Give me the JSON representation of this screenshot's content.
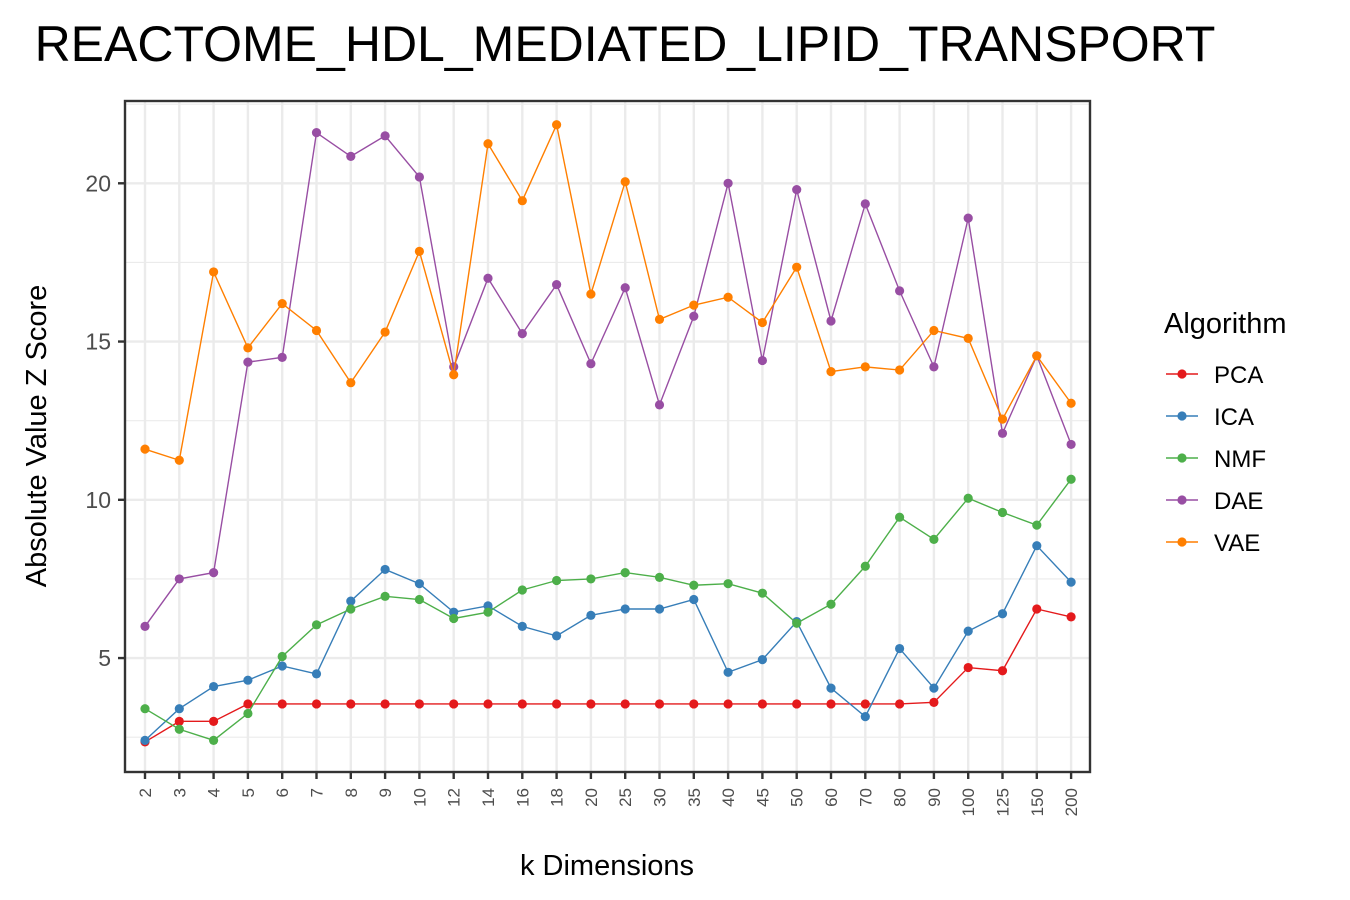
{
  "chart_data": {
    "type": "line",
    "title": "REACTOME_HDL_MEDIATED_LIPID_TRANSPORT",
    "xlabel": "k Dimensions",
    "ylabel": "Absolute Value Z Score",
    "categories": [
      "2",
      "3",
      "4",
      "5",
      "6",
      "7",
      "8",
      "9",
      "10",
      "12",
      "14",
      "16",
      "18",
      "20",
      "25",
      "30",
      "35",
      "40",
      "45",
      "50",
      "60",
      "70",
      "80",
      "90",
      "100",
      "125",
      "150",
      "200"
    ],
    "yticks": [
      5,
      10,
      15,
      20
    ],
    "ylim": [
      1.4,
      22.6
    ],
    "grid": true,
    "legend": {
      "title": "Algorithm",
      "placement": "right"
    },
    "series": [
      {
        "name": "PCA",
        "color": "#e41a1c",
        "values": [
          2.35,
          3.0,
          3.0,
          3.55,
          3.55,
          3.55,
          3.55,
          3.55,
          3.55,
          3.55,
          3.55,
          3.55,
          3.55,
          3.55,
          3.55,
          3.55,
          3.55,
          3.55,
          3.55,
          3.55,
          3.55,
          3.55,
          3.55,
          3.6,
          4.7,
          4.6,
          6.55,
          6.3
        ]
      },
      {
        "name": "ICA",
        "color": "#377eb8",
        "values": [
          2.4,
          3.4,
          4.1,
          4.3,
          4.75,
          4.5,
          6.8,
          7.8,
          7.35,
          6.45,
          6.65,
          6.0,
          5.7,
          6.35,
          6.55,
          6.55,
          6.85,
          4.55,
          4.95,
          6.15,
          4.05,
          3.15,
          5.3,
          4.05,
          5.85,
          6.4,
          8.55,
          7.4
        ]
      },
      {
        "name": "NMF",
        "color": "#4daf4a",
        "values": [
          3.4,
          2.75,
          2.4,
          3.25,
          5.05,
          6.05,
          6.55,
          6.95,
          6.85,
          6.25,
          6.45,
          7.15,
          7.45,
          7.5,
          7.7,
          7.55,
          7.3,
          7.35,
          7.05,
          6.1,
          6.7,
          7.9,
          9.45,
          8.75,
          10.05,
          9.6,
          9.2,
          10.65
        ]
      },
      {
        "name": "DAE",
        "color": "#984ea3",
        "values": [
          6.0,
          7.5,
          7.7,
          14.35,
          14.5,
          21.6,
          20.85,
          21.5,
          20.2,
          14.2,
          17.0,
          15.25,
          16.8,
          14.3,
          16.7,
          13.0,
          15.8,
          20.0,
          14.4,
          19.8,
          15.65,
          19.35,
          16.6,
          14.2,
          18.9,
          12.1,
          14.55,
          11.75
        ]
      },
      {
        "name": "VAE",
        "color": "#ff7f00",
        "values": [
          11.6,
          11.25,
          17.2,
          14.8,
          16.2,
          15.35,
          13.7,
          15.3,
          17.85,
          13.95,
          21.25,
          19.45,
          21.85,
          16.5,
          20.05,
          15.7,
          16.15,
          16.4,
          15.6,
          17.35,
          14.05,
          14.2,
          14.1,
          15.35,
          15.1,
          12.55,
          14.55,
          13.05
        ]
      }
    ]
  }
}
